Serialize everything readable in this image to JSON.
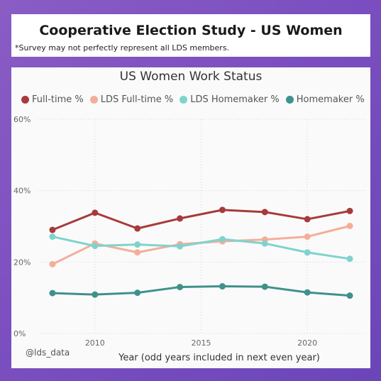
{
  "header": {
    "title": "Cooperative Election Study - US Women",
    "disclaimer": "*Survey may not perfectly represent all LDS members."
  },
  "watermark": "@lds_data",
  "chart_data": {
    "type": "line",
    "title": "US Women Work Status",
    "xlabel": "Year (odd years included in next even year)",
    "ylabel": "",
    "x": [
      2008,
      2010,
      2012,
      2014,
      2016,
      2018,
      2020,
      2022
    ],
    "xlim": [
      2007.3,
      2022.7
    ],
    "ylim": [
      0,
      60
    ],
    "x_ticks": [
      2010,
      2015,
      2020
    ],
    "x_tick_labels": [
      "2010",
      "2015",
      "2020"
    ],
    "y_ticks": [
      0,
      20,
      40,
      60
    ],
    "y_tick_labels": [
      "0%",
      "20%",
      "40%",
      "60%"
    ],
    "grid": true,
    "legend_position": "top",
    "series": [
      {
        "name": "Full-time %",
        "color": "#a83a3a",
        "values": [
          29.0,
          33.8,
          29.4,
          32.2,
          34.6,
          34.0,
          32.0,
          34.3
        ]
      },
      {
        "name": "LDS Full-time %",
        "color": "#f4ae98",
        "values": [
          19.4,
          25.2,
          22.7,
          25.0,
          25.8,
          26.3,
          27.1,
          30.1
        ]
      },
      {
        "name": "LDS Homemaker %",
        "color": "#7fd3cd",
        "values": [
          27.1,
          24.5,
          24.9,
          24.4,
          26.4,
          25.2,
          22.7,
          20.9
        ]
      },
      {
        "name": "Homemaker %",
        "color": "#3f918b",
        "values": [
          11.3,
          10.9,
          11.4,
          13.0,
          13.2,
          13.1,
          11.5,
          10.6
        ]
      }
    ]
  }
}
